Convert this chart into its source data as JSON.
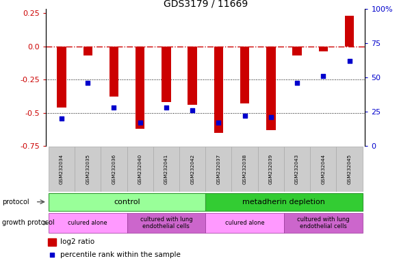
{
  "title": "GDS3179 / 11669",
  "samples": [
    "GSM232034",
    "GSM232035",
    "GSM232036",
    "GSM232040",
    "GSM232041",
    "GSM232042",
    "GSM232037",
    "GSM232038",
    "GSM232039",
    "GSM232043",
    "GSM232044",
    "GSM232045"
  ],
  "log2_ratio": [
    -0.46,
    -0.07,
    -0.38,
    -0.62,
    -0.42,
    -0.44,
    -0.65,
    -0.43,
    -0.63,
    -0.07,
    -0.04,
    0.23
  ],
  "percentile_rank": [
    20,
    46,
    28,
    17,
    28,
    26,
    17,
    22,
    21,
    46,
    51,
    62
  ],
  "bar_color": "#cc0000",
  "dot_color": "#0000cc",
  "ylim_left": [
    -0.75,
    0.28
  ],
  "ylim_right": [
    0,
    100
  ],
  "yticks_left": [
    -0.75,
    -0.5,
    -0.25,
    0.0,
    0.25
  ],
  "yticks_right": [
    0,
    25,
    50,
    75,
    100
  ],
  "dotted_lines": [
    -0.25,
    -0.5
  ],
  "protocol_control_label": "control",
  "protocol_metadherin_label": "metadherin depletion",
  "protocol_control_color": "#99ff99",
  "protocol_metadherin_color": "#33cc33",
  "growth_alone_color": "#ff99ff",
  "growth_lung_color": "#cc66cc",
  "growth_alone_label": "culured alone",
  "growth_lung_label": "cultured with lung\nendothelial cells",
  "legend_log2": "log2 ratio",
  "legend_pct": "percentile rank within the sample",
  "title_fontsize": 10,
  "bar_width": 0.35
}
